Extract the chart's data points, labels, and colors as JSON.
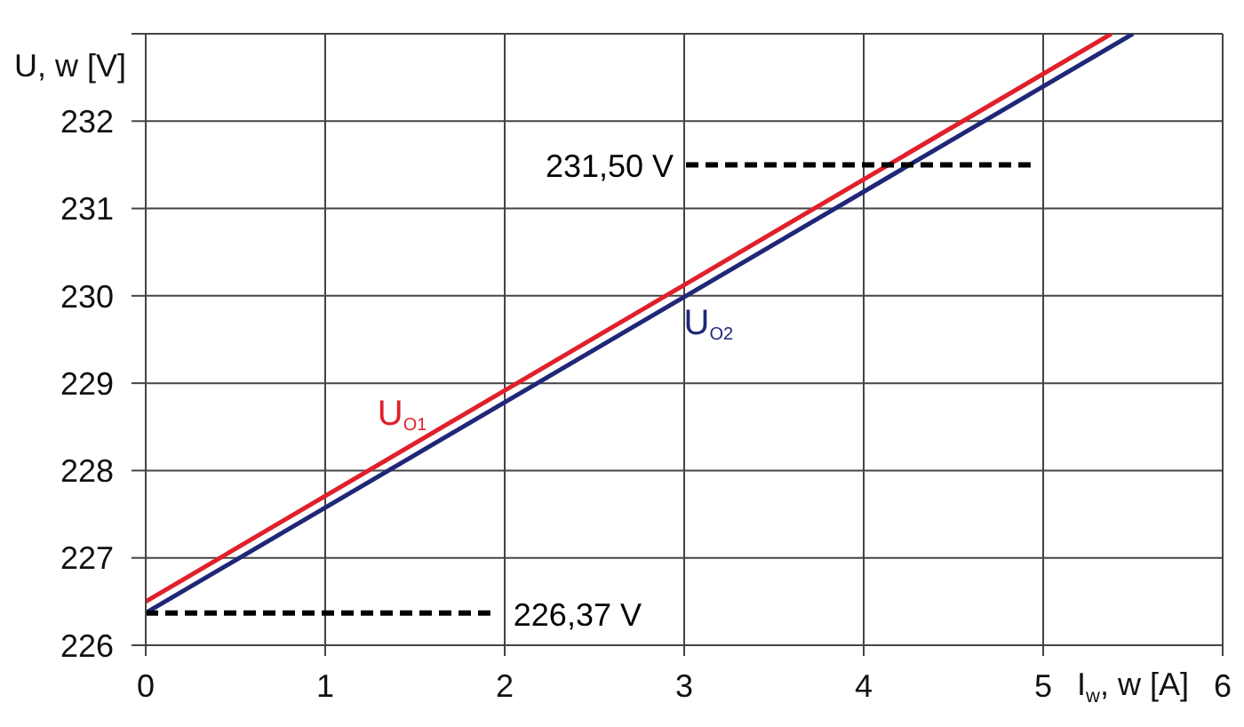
{
  "chart_data": {
    "type": "line",
    "xlabel": "I$_{w}$, w [A]",
    "ylabel": "U, w [V]",
    "xlim": [
      0,
      6
    ],
    "xticks": [
      0,
      1,
      2,
      3,
      4,
      5,
      6
    ],
    "ylim": [
      226,
      233
    ],
    "yticks": [
      226,
      227,
      228,
      229,
      230,
      231,
      232,
      {
        "value": 233,
        "label": null
      }
    ],
    "grid": true,
    "marker": "none",
    "line_style": "solid",
    "series": [
      {
        "name": "U$_{O1}$",
        "color": "#e0202a",
        "x": [
          0,
          5.38
        ],
        "values": [
          226.5,
          233
        ]
      },
      {
        "name": "U$_{O2}$",
        "color": "#1f2778",
        "x": [
          0,
          5.5
        ],
        "values": [
          226.37,
          233
        ]
      },
      {
        "name": "226,37 V",
        "color": "#000000",
        "line_style": "dashed",
        "x": [
          0,
          1.92
        ],
        "values": [
          226.37,
          226.37
        ]
      },
      {
        "name": "231,50 V",
        "color": "#000000",
        "line_style": "dashed",
        "x": [
          3.01,
          4.93
        ],
        "values": [
          231.5,
          231.5
        ]
      }
    ]
  }
}
